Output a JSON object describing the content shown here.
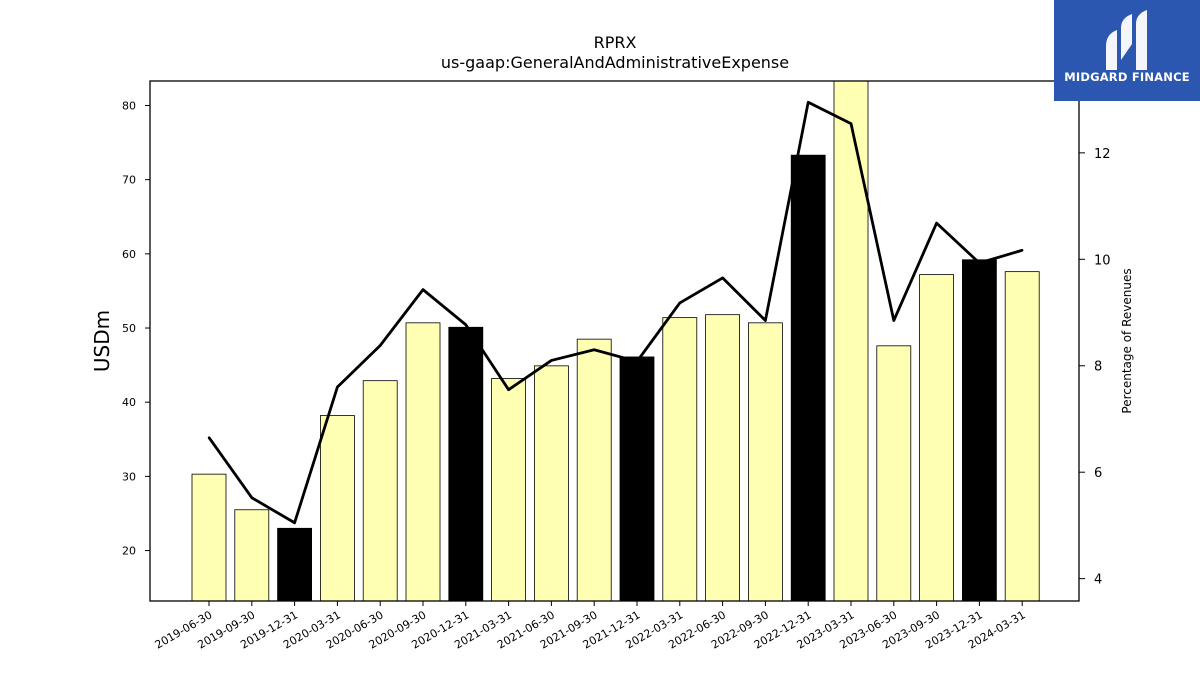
{
  "chart_data": {
    "type": "bar",
    "title": "RPRX",
    "subtitle": "us-gaap:GeneralAndAdministrativeExpense",
    "ylabel": "USDm",
    "y2label": "Percentage of Revenues",
    "categories": [
      "2019-06-30",
      "2019-09-30",
      "2019-12-31",
      "2020-03-31",
      "2020-06-30",
      "2020-09-30",
      "2020-12-31",
      "2021-03-31",
      "2021-06-30",
      "2021-09-30",
      "2021-12-31",
      "2022-03-31",
      "2022-06-30",
      "2022-09-30",
      "2022-12-31",
      "2023-03-31",
      "2023-06-30",
      "2023-09-30",
      "2023-12-31",
      "2024-03-31"
    ],
    "values": [
      30.3,
      25.5,
      23.0,
      38.2,
      42.9,
      50.7,
      50.1,
      43.2,
      44.9,
      48.5,
      46.1,
      51.4,
      51.8,
      50.7,
      73.3,
      85.0,
      47.6,
      57.2,
      59.2,
      57.6
    ],
    "year_end": [
      false,
      false,
      true,
      false,
      false,
      false,
      true,
      false,
      false,
      false,
      true,
      false,
      false,
      false,
      true,
      false,
      false,
      false,
      true,
      false
    ],
    "series": [
      {
        "values": [
          30.3,
          25.5,
          23.0,
          38.2,
          42.9,
          50.7,
          50.1,
          43.2,
          44.9,
          48.5,
          46.1,
          51.4,
          51.8,
          50.7,
          73.3,
          85.0,
          47.6,
          57.2,
          59.2,
          57.6
        ]
      },
      {
        "axis": "right",
        "values": [
          6.65,
          5.52,
          5.05,
          7.6,
          8.38,
          9.43,
          8.77,
          7.55,
          8.1,
          8.3,
          8.08,
          9.18,
          9.65,
          8.85,
          12.95,
          12.55,
          8.85,
          10.68,
          9.93,
          10.17
        ]
      }
    ],
    "ylim": [
      13.2,
      83.3
    ],
    "y2lim": [
      3.58,
      13.35
    ],
    "yticks": [
      20,
      30,
      40,
      50,
      60,
      70,
      80
    ],
    "y2ticks": [
      4,
      6,
      8,
      10,
      12
    ],
    "colors": {
      "bar": "#ffffb3",
      "bar_year_end": "#000000",
      "bar_edge": "#000000",
      "line": "#000000"
    },
    "grid": false,
    "legend": "none"
  },
  "logo": {
    "brand": "MIDGARD FINANCE"
  }
}
